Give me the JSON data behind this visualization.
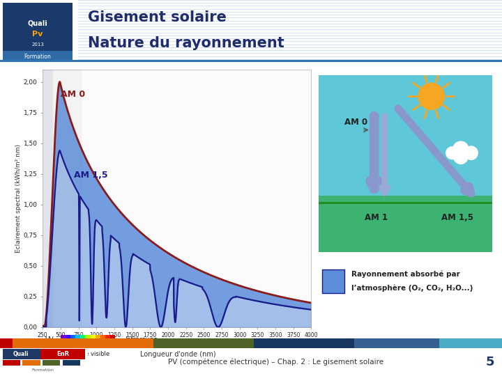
{
  "title_line1": "Gisement solaire",
  "title_line2": "Nature du rayonnement",
  "xlabel": "Longueur d'onde (nm)",
  "ylabel": "Eclairement spectral (kWh/m².nm)",
  "xlim": [
    250,
    4000
  ],
  "ylim": [
    0.0,
    2.1
  ],
  "ytick_vals": [
    0.0,
    0.25,
    0.5,
    0.75,
    1.0,
    1.25,
    1.5,
    1.75,
    2.0
  ],
  "ytick_labels": [
    "0,00",
    "0,25",
    "0,50",
    "0,75",
    "1,00",
    "1,25",
    "1,50",
    "1,75",
    "2,00"
  ],
  "xtick_vals": [
    250,
    500,
    750,
    1000,
    1250,
    1500,
    1750,
    2000,
    2250,
    2500,
    2750,
    3000,
    3250,
    3500,
    3750,
    4000
  ],
  "am0_color": "#8B1A1A",
  "am15_color": "#1A1A8B",
  "am15_fill_color": "#5B8DD9",
  "am15_fill_alpha": 0.85,
  "plot_bg": "#FFFFFF",
  "uv_bg_color": "#E0E0EE",
  "vis_bg_color": "#E8E8E8",
  "label_am0": "AM 0",
  "label_am15": "AM 1,5",
  "legend_line1": "Rayonnement absorbé par",
  "legend_line2": "l’atmosphère (O₂, CO₂, H₂O...)",
  "footer_text": "PV (compétence électrique) – Chap. 2 : Le gisement solaire",
  "page_num": "5",
  "header_bg": "#D9E1F2",
  "header_stripe_color": "#BDD7EE",
  "title_color": "#1F2D6B",
  "footer_bar_colors": [
    "#C00000",
    "#E36C09",
    "#4F6228",
    "#17375E",
    "#366092",
    "#4BACC6"
  ],
  "footer_bar_widths": [
    0.025,
    0.28,
    0.2,
    0.2,
    0.17,
    0.125
  ]
}
